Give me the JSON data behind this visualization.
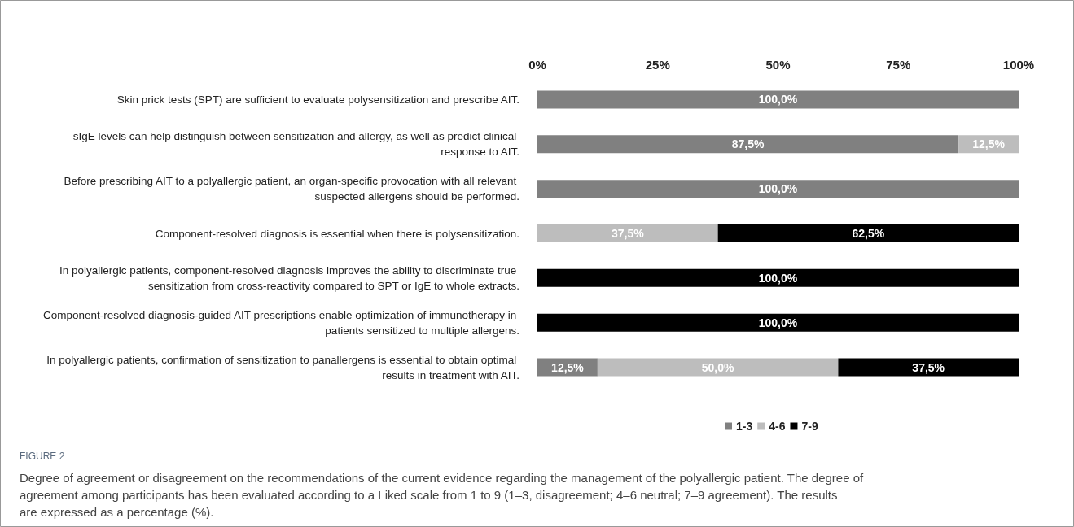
{
  "chart_data": {
    "type": "bar",
    "orientation": "horizontal",
    "stacked": true,
    "title": "FIGURE 2",
    "annotations": [
      "Degree of agreement or disagreement on the recommendations of the current evidence regarding the management of the polyallergic patient. The degree of agreement among participants has been evaluated according to a Liked scale from 1 to 9 (1–3, disagreement; 4–6 neutral; 7–9 agreement). The results are expressed as a percentage (%)."
    ],
    "categories": [
      "Skin prick tests (SPT) are sufficient to evaluate polysensitization and prescribe AIT.",
      "sIgE levels can help distinguish between sensitization and allergy, as well as predict clinical response to AIT.",
      "Before prescribing AIT to a polyallergic patient, an organ-specific provocation with all relevant suspected allergens should be performed.",
      "Component-resolved diagnosis is essential when there is polysensitization.",
      "In polyallergic patients, component-resolved diagnosis improves the ability to discriminate true sensitization from cross-reactivity compared to SPT or IgE to whole extracts.",
      "Component-resolved diagnosis-guided AIT prescriptions enable optimization of immunotherapy in patients sensitized to multiple allergens.",
      "In polyallergic patients, confirmation of sensitization to panallergens is essential to obtain optimal results in treatment with AIT."
    ],
    "series": [
      {
        "name": "1-3",
        "color": "#808080",
        "values": [
          100,
          87.5,
          100,
          0,
          0,
          0,
          12.5
        ],
        "value_labels": [
          "100,0%",
          "87,5%",
          "100,0%",
          null,
          null,
          null,
          "12,5%"
        ]
      },
      {
        "name": "4-6",
        "color": "#bdbdbd",
        "values": [
          0,
          12.5,
          0,
          37.5,
          0,
          0,
          50
        ],
        "value_labels": [
          null,
          "12,5%",
          null,
          "37,5%",
          null,
          null,
          "50,0%"
        ]
      },
      {
        "name": "7-9",
        "color": "#000000",
        "values": [
          0,
          0,
          0,
          62.5,
          100,
          100,
          37.5
        ],
        "value_labels": [
          null,
          null,
          null,
          "62,5%",
          "100,0%",
          "100,0%",
          "37,5%"
        ]
      }
    ],
    "xlim": [
      0,
      100
    ],
    "xticks": [
      {
        "value": 0,
        "label": "0%"
      },
      {
        "value": 25,
        "label": "25%"
      },
      {
        "value": 50,
        "label": "50%"
      },
      {
        "value": 75,
        "label": "75%"
      },
      {
        "value": 100,
        "label": "100%"
      }
    ],
    "grid": false,
    "legend": "bottom"
  }
}
